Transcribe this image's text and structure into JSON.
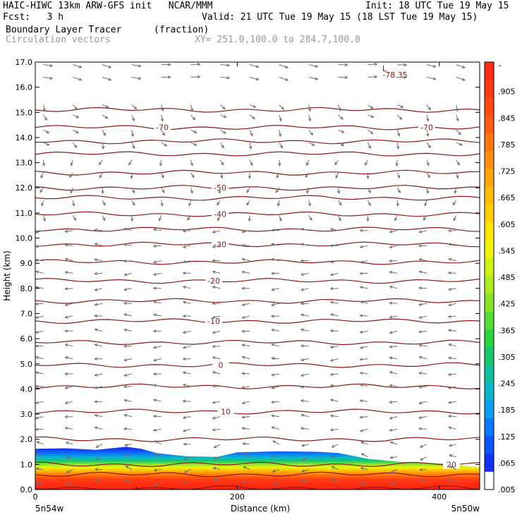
{
  "header": {
    "title_left": "HAIC-HIWC 13km ARW-GFS init   NCAR/MMM",
    "init": "Init: 18 UTC Tue 19 May 15",
    "fcst": "Fcst:   3 h",
    "valid": "Valid: 21 UTC Tue 19 May 15 (18 LST Tue 19 May 15)",
    "field_name": "Boundary Layer Tracer",
    "field_units": "(fraction)",
    "vector_name": "Circulation vectors",
    "cross_section": "XY= 251.0,100.0 to 284.7,100.0"
  },
  "chart_data": {
    "type": "heatmap",
    "xlabel": "Distance (km)",
    "ylabel": "Height (km)",
    "xlim": [
      0,
      440
    ],
    "ylim": [
      0,
      17
    ],
    "x_ticks": [
      "0",
      "200",
      "400"
    ],
    "x_end_labels": {
      "left": "5n54w",
      "right": "5n50w"
    },
    "y_ticks": [
      "0.0",
      "1.0",
      "2.0",
      "3.0",
      "4.0",
      "5.0",
      "6.0",
      "7.0",
      "8.0",
      "9.0",
      "10.0",
      "11.0",
      "12.0",
      "13.0",
      "14.0",
      "15.0",
      "16.0",
      "17.0"
    ],
    "colorbar": {
      "labels": [
        "–",
        ".905",
        ".845",
        ".785",
        ".725",
        ".665",
        ".605",
        ".545",
        ".485",
        ".425",
        ".365",
        ".305",
        ".245",
        ".185",
        ".125",
        ".065",
        ".005"
      ],
      "colors_top_to_bottom": [
        "#ff2d15",
        "#ff3a14",
        "#ff4a12",
        "#ff5e10",
        "#ff760c",
        "#ff8f0a",
        "#ffa608",
        "#ffbc06",
        "#ffd005",
        "#ffe505",
        "#eef50a",
        "#cff213",
        "#aeec1f",
        "#8ae52a",
        "#55dc35",
        "#2ad640",
        "#16c86b",
        "#10c0a0",
        "#0ab6cc",
        "#0a9ef0",
        "#0a78ff",
        "#0a55ff",
        "#1630f5",
        "#ffffff"
      ]
    },
    "tracer_top_km": [
      [
        0,
        1.62
      ],
      [
        30,
        1.64
      ],
      [
        60,
        1.58
      ],
      [
        90,
        1.7
      ],
      [
        105,
        1.62
      ],
      [
        120,
        1.45
      ],
      [
        150,
        1.32
      ],
      [
        180,
        1.3
      ],
      [
        200,
        1.48
      ],
      [
        240,
        1.52
      ],
      [
        280,
        1.5
      ],
      [
        300,
        1.45
      ],
      [
        330,
        1.22
      ],
      [
        360,
        1.1
      ],
      [
        400,
        1.05
      ],
      [
        440,
        0.88
      ]
    ],
    "temperature_contours": [
      {
        "label": "-70",
        "height_km": 14.4
      },
      {
        "label": "-50",
        "height_km": 12.0
      },
      {
        "label": "-40",
        "height_km": 10.95
      },
      {
        "label": "-30",
        "height_km": 9.75
      },
      {
        "label": "-20",
        "height_km": 8.3
      },
      {
        "label": "-10",
        "height_km": 6.7
      },
      {
        "label": "0",
        "height_km": 4.95
      },
      {
        "label": "10",
        "height_km": 3.1
      },
      {
        "label": "20",
        "height_km": 1.0
      }
    ],
    "unlabeled_contours_km": [
      15.1,
      13.85,
      13.35,
      12.6,
      11.6,
      10.35,
      9.05,
      7.5,
      5.85,
      4.1,
      2.0,
      0.6,
      0.05
    ],
    "minimum_marker": {
      "symbol": "L",
      "value": "-78.35"
    },
    "vector_rows_km": [
      16.9,
      16.4,
      15.3,
      14.9,
      14.3,
      13.8,
      13.1,
      12.6,
      12.0,
      11.5,
      10.9,
      10.3,
      9.7,
      9.1,
      8.6,
      8.0,
      7.4,
      6.9,
      6.3,
      5.7,
      5.2,
      4.6,
      4.1,
      3.5,
      2.9,
      2.4,
      1.8,
      1.3,
      0.8,
      0.3
    ],
    "grid": false
  }
}
